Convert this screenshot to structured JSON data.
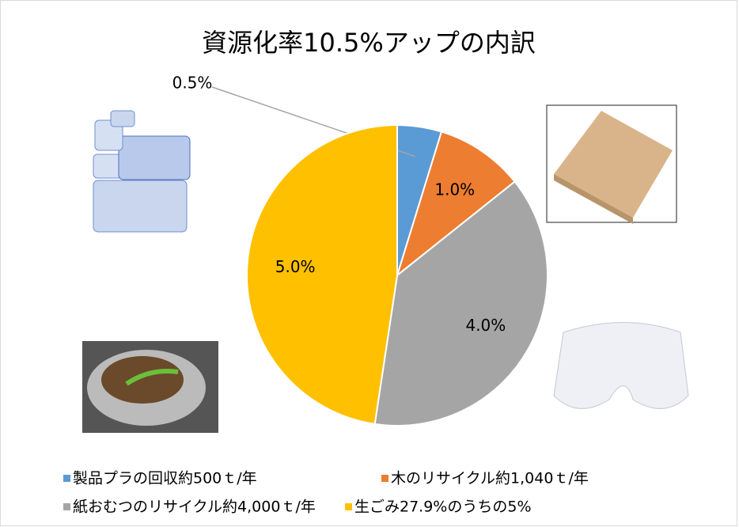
{
  "chart_data": {
    "type": "pie",
    "title": "資源化率10.5%アップの内訳",
    "categories": [
      "製品プラの回収約500ｔ/年",
      "木のリサイクル約1,040ｔ/年",
      "紙おむつのリサイクル約4,000ｔ/年",
      "生ごみ27.9%のうちの5%"
    ],
    "values": [
      0.5,
      1.0,
      4.0,
      5.0
    ],
    "value_labels": [
      "0.5%",
      "1.0%",
      "4.0%",
      "5.0%"
    ],
    "colors": [
      "#5b9bd5",
      "#ed7d31",
      "#a5a5a5",
      "#ffc000"
    ],
    "legend": "bottom"
  }
}
